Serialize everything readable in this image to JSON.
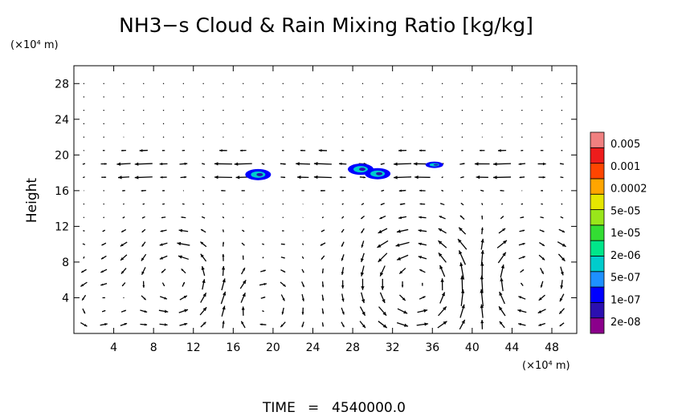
{
  "chart_data": {
    "type": "contour-vector",
    "title": "NH3−s Cloud & Rain Mixing Ratio [kg/kg]",
    "x_unit": "(×10⁴ m)",
    "y_unit": "(×10⁴ m)",
    "ylabel": "Height",
    "xlabel": "",
    "xlim": [
      0,
      50.5
    ],
    "ylim": [
      0,
      30
    ],
    "x_ticks": [
      "4",
      "8",
      "12",
      "16",
      "20",
      "24",
      "28",
      "32",
      "36",
      "40",
      "44",
      "48"
    ],
    "y_ticks": [
      "4",
      "8",
      "12",
      "16",
      "20",
      "24",
      "28"
    ],
    "x_tick_values": [
      4,
      8,
      12,
      16,
      20,
      24,
      28,
      32,
      36,
      40,
      44,
      48
    ],
    "y_tick_values": [
      4,
      8,
      12,
      16,
      20,
      24,
      28
    ],
    "colorbar": {
      "labels": [
        "0.005",
        "0.001",
        "0.0002",
        "5e-05",
        "1e-05",
        "2e-06",
        "5e-07",
        "1e-07",
        "2e-08"
      ],
      "colors": [
        "#8b008b",
        "#2b0fb0",
        "#0000ff",
        "#1e90ff",
        "#00cccc",
        "#00e68a",
        "#33dd33",
        "#99e61a",
        "#e6e600",
        "#ffa500",
        "#ff4500",
        "#ee1c1c",
        "#f08080"
      ]
    },
    "cloud_regions": [
      {
        "x": 18.5,
        "y": 17.8,
        "level": "1e-07"
      },
      {
        "x": 28.8,
        "y": 18.4,
        "level": "1e-07"
      },
      {
        "x": 30.5,
        "y": 17.9,
        "level": "1e-07"
      },
      {
        "x": 36.2,
        "y": 18.9,
        "level": "2e-08"
      }
    ],
    "time_label": "TIME",
    "time_value": "4540000.0"
  }
}
